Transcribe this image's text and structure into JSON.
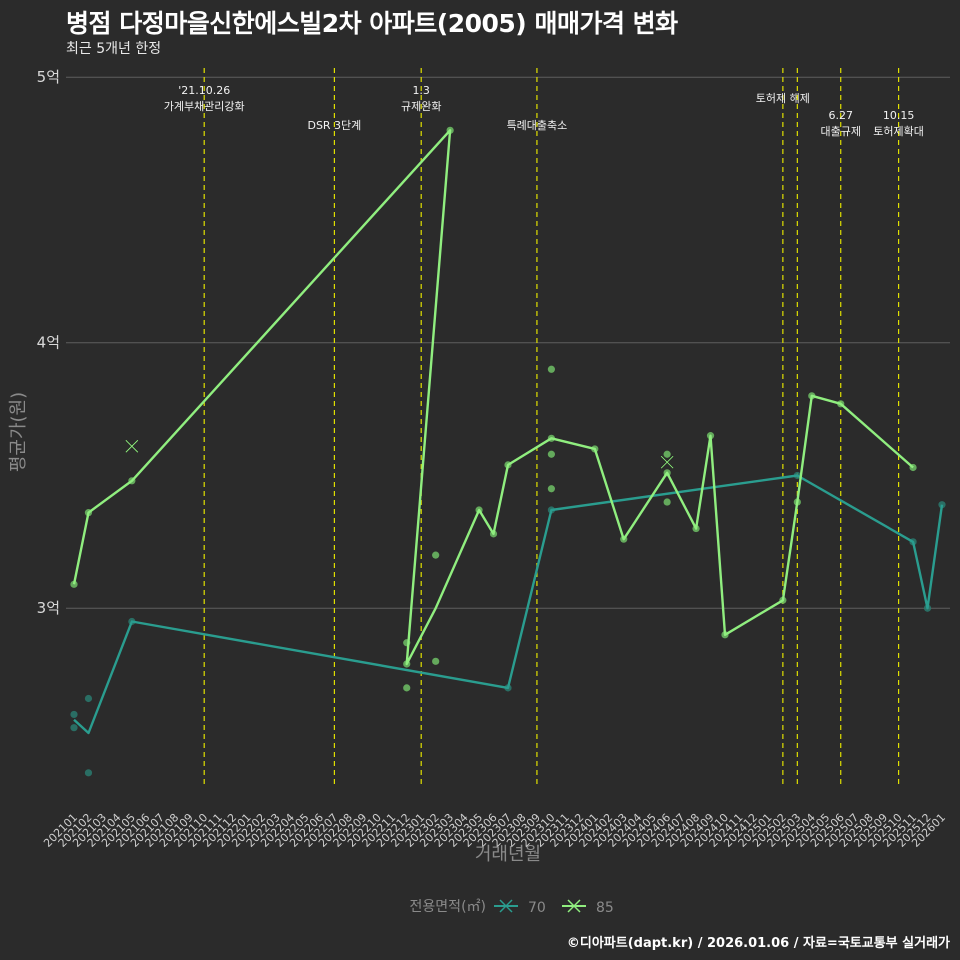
{
  "title": "병점 다정마을신한에스빌2차 아파트(2005) 매매가격 변화",
  "subtitle": "최근 5개년 한정",
  "caption": "©디아파트(dapt.kr) / 2026.01.06 / 자료=국토교통부 실거래가",
  "colors": {
    "background": "#2b2b2b",
    "grid": "#5e5e5e",
    "event_line": "#e0e000",
    "series_70": "#2a9d8f",
    "series_85": "#90ee7f",
    "point_70": "#2a7a6e",
    "point_85": "#6fbf65"
  },
  "chart_data": {
    "type": "line",
    "title": "병점 다정마을신한에스빌2차 아파트(2005) 매매가격 변화",
    "xlabel": "거래년월",
    "ylabel": "평균가(원)",
    "ylim": [
      2.24,
      5.08
    ],
    "y_ticks": [
      {
        "v": 3,
        "label": "3억"
      },
      {
        "v": 4,
        "label": "4억"
      },
      {
        "v": 5,
        "label": "5억"
      }
    ],
    "categories": [
      "202101",
      "202102",
      "202103",
      "202104",
      "202105",
      "202106",
      "202107",
      "202108",
      "202109",
      "202110",
      "202111",
      "202112",
      "202201",
      "202202",
      "202203",
      "202204",
      "202205",
      "202206",
      "202207",
      "202208",
      "202209",
      "202210",
      "202211",
      "202212",
      "202301",
      "202302",
      "202303",
      "202304",
      "202305",
      "202306",
      "202307",
      "202308",
      "202309",
      "202310",
      "202311",
      "202312",
      "202401",
      "202402",
      "202403",
      "202404",
      "202405",
      "202406",
      "202407",
      "202408",
      "202409",
      "202410",
      "202411",
      "202412",
      "202501",
      "202502",
      "202503",
      "202504",
      "202505",
      "202506",
      "202507",
      "202508",
      "202509",
      "202510",
      "202511",
      "202512",
      "202601"
    ],
    "legend_title": "전용면적(㎡)",
    "series": [
      {
        "name": "70",
        "line": [
          [
            "202101",
            2.58
          ],
          [
            "202102",
            2.53
          ],
          [
            "202105",
            2.95
          ],
          [
            "202307",
            2.7
          ],
          [
            "202310",
            3.37
          ],
          [
            "202503",
            3.5
          ],
          [
            "202511",
            3.25
          ],
          [
            "202512",
            3.0
          ],
          [
            "202601",
            3.39
          ]
        ],
        "points": [
          [
            "202101",
            2.6
          ],
          [
            "202101",
            2.55
          ],
          [
            "202102",
            2.66
          ],
          [
            "202102",
            2.38
          ],
          [
            "202105",
            2.95
          ],
          [
            "202307",
            2.7
          ],
          [
            "202310",
            3.37
          ],
          [
            "202503",
            3.5
          ],
          [
            "202511",
            3.25
          ],
          [
            "202512",
            3.0
          ],
          [
            "202601",
            3.39
          ]
        ],
        "cancelled": []
      },
      {
        "name": "85",
        "line": [
          [
            "202101",
            3.09
          ],
          [
            "202102",
            3.36
          ],
          [
            "202105",
            3.48
          ],
          [
            "202303",
            4.8
          ],
          [
            "202212",
            2.79
          ],
          [
            "202302",
            3.0
          ],
          [
            "202305",
            3.37
          ],
          [
            "202306",
            3.28
          ],
          [
            "202307",
            3.54
          ],
          [
            "202310",
            3.64
          ],
          [
            "202401",
            3.6
          ],
          [
            "202403",
            3.26
          ],
          [
            "202406",
            3.51
          ],
          [
            "202408",
            3.3
          ],
          [
            "202409",
            3.65
          ],
          [
            "202410",
            2.9
          ],
          [
            "202502",
            3.03
          ],
          [
            "202503",
            3.4
          ],
          [
            "202504",
            3.8
          ],
          [
            "202506",
            3.77
          ],
          [
            "202511",
            3.53
          ]
        ],
        "points": [
          [
            "202101",
            3.09
          ],
          [
            "202102",
            3.36
          ],
          [
            "202105",
            3.48
          ],
          [
            "202303",
            4.8
          ],
          [
            "202212",
            2.79
          ],
          [
            "202212",
            2.87
          ],
          [
            "202212",
            2.7
          ],
          [
            "202302",
            3.2
          ],
          [
            "202302",
            2.8
          ],
          [
            "202305",
            3.37
          ],
          [
            "202306",
            3.28
          ],
          [
            "202307",
            3.54
          ],
          [
            "202310",
            3.64
          ],
          [
            "202310",
            3.9
          ],
          [
            "202310",
            3.58
          ],
          [
            "202310",
            3.45
          ],
          [
            "202401",
            3.6
          ],
          [
            "202403",
            3.26
          ],
          [
            "202406",
            3.51
          ],
          [
            "202406",
            3.58
          ],
          [
            "202406",
            3.4
          ],
          [
            "202408",
            3.3
          ],
          [
            "202409",
            3.65
          ],
          [
            "202410",
            2.9
          ],
          [
            "202502",
            3.03
          ],
          [
            "202503",
            3.4
          ],
          [
            "202504",
            3.8
          ],
          [
            "202506",
            3.77
          ],
          [
            "202511",
            3.53
          ]
        ],
        "cancelled": [
          [
            "202105",
            3.61
          ],
          [
            "202406",
            3.55
          ]
        ]
      }
    ],
    "events": [
      {
        "x": "202110",
        "lines": [
          "'21.10.26",
          "가계부채관리강화"
        ],
        "row": 0
      },
      {
        "x": "202207",
        "lines": [
          "DSR 3단계"
        ],
        "row": 2
      },
      {
        "x": "202301",
        "lines": [
          "1.3",
          "규제완화"
        ],
        "row": 0
      },
      {
        "x": "202309",
        "lines": [
          "특례대출축소"
        ],
        "row": 2
      },
      {
        "x": "202502",
        "lines": [
          "토허제 해제"
        ],
        "row": 1
      },
      {
        "x": "202503",
        "lines": [],
        "row": 1
      },
      {
        "x": "202506",
        "lines": [
          "6.27",
          "대출규제"
        ],
        "row": 3
      },
      {
        "x": "202510",
        "lines": [
          "10.15",
          "토허제확대"
        ],
        "row": 3
      }
    ]
  }
}
